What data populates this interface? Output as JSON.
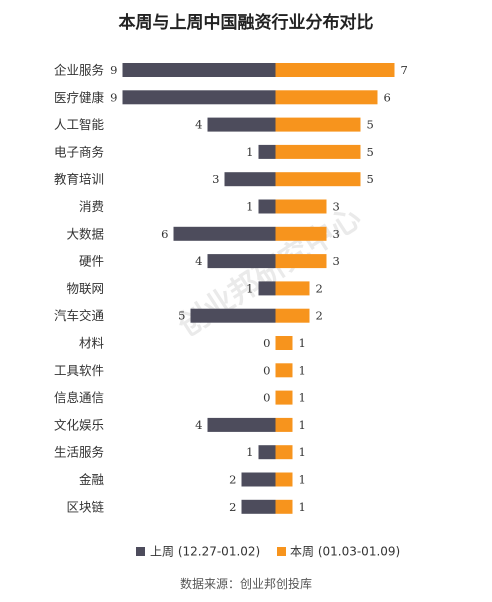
{
  "chart_data": {
    "type": "bar",
    "orientation": "horizontal-diverging",
    "title": "本周与上周中国融资行业分布对比",
    "categories": [
      "企业服务",
      "医疗健康",
      "人工智能",
      "电子商务",
      "教育培训",
      "消费",
      "大数据",
      "硬件",
      "物联网",
      "汽车交通",
      "材料",
      "工具软件",
      "信息通信",
      "文化娱乐",
      "生活服务",
      "金融",
      "区块链"
    ],
    "series": [
      {
        "name": "上周 (12.27-01.02)",
        "color": "#4d4c5c",
        "side": "left",
        "values": [
          9,
          9,
          4,
          1,
          3,
          1,
          6,
          4,
          1,
          5,
          0,
          0,
          0,
          4,
          1,
          2,
          2
        ]
      },
      {
        "name": "本周 (01.03-01.09)",
        "color": "#f7941d",
        "side": "right",
        "values": [
          7,
          6,
          5,
          5,
          5,
          3,
          3,
          3,
          2,
          2,
          1,
          1,
          1,
          1,
          1,
          1,
          1
        ]
      }
    ],
    "xlim": [
      0,
      9
    ],
    "grid": false,
    "legend_position": "bottom",
    "watermark": "创业邦研究中心"
  },
  "source": "数据来源：创业邦创投库"
}
